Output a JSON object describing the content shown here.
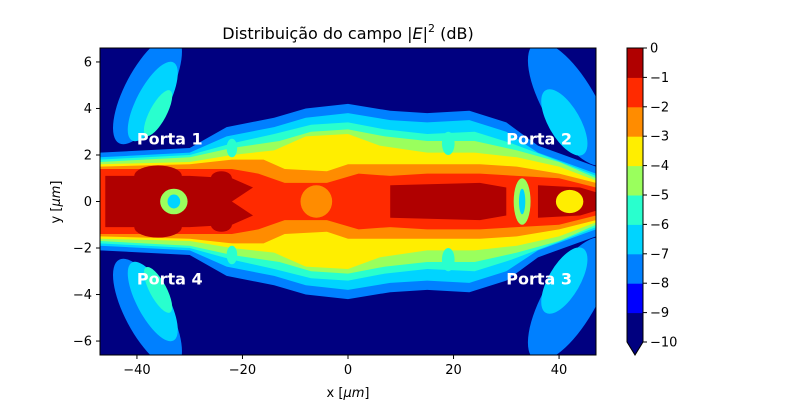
{
  "title_main": "Distribuição do campo |",
  "title_var": "E",
  "title_bar": "|",
  "title_sup": "2",
  "title_unit": " (dB)",
  "colors": {
    "background": "#000080",
    "levels": [
      "#00007f",
      "#0000ff",
      "#0080ff",
      "#00d4ff",
      "#29ffce",
      "#9aff5d",
      "#ffee00",
      "#ff8c00",
      "#ff2a00",
      "#b00000"
    ]
  },
  "chart_data": {
    "type": "heatmap",
    "xlabel_prefix": "x [",
    "xlabel_unit": "μm",
    "xlabel_suffix": "]",
    "ylabel_prefix": "y [",
    "ylabel_unit": "μm",
    "ylabel_suffix": "]",
    "xlim": [
      -47,
      47
    ],
    "ylim": [
      -6.6,
      6.6
    ],
    "xticks": [
      -40,
      -20,
      0,
      20,
      40
    ],
    "xtick_labels": [
      "−40",
      "−20",
      "0",
      "20",
      "40"
    ],
    "yticks": [
      -6,
      -4,
      -2,
      0,
      2,
      4,
      6
    ],
    "ytick_labels": [
      "−6",
      "−4",
      "−2",
      "0",
      "2",
      "4",
      "6"
    ],
    "colorbar": {
      "levels": [
        -10,
        -9,
        -8,
        -7,
        -6,
        -5,
        -4,
        -3,
        -2,
        -1,
        0
      ],
      "labels": [
        "−10",
        "−9",
        "−8",
        "−7",
        "−6",
        "−5",
        "−4",
        "−3",
        "−2",
        "−1",
        "0"
      ],
      "extend": "min"
    },
    "annotations": [
      {
        "text": "Porta 1",
        "x": -40,
        "y": 2.7
      },
      {
        "text": "Porta 2",
        "x": 30,
        "y": 2.7
      },
      {
        "text": "Porta 3",
        "x": 30,
        "y": -3.3
      },
      {
        "text": "Porta 4",
        "x": -40,
        "y": -3.3
      }
    ]
  }
}
